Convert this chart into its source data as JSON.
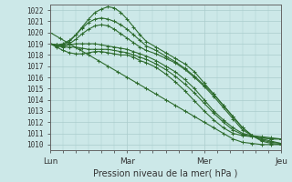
{
  "xlabel": "Pression niveau de la mer( hPa )",
  "bg_color": "#cce8e8",
  "grid_color": "#aacccc",
  "line_color": "#2d6b2d",
  "ylim": [
    1009.5,
    1022.5
  ],
  "yticks": [
    1010,
    1011,
    1012,
    1013,
    1014,
    1015,
    1016,
    1017,
    1018,
    1019,
    1020,
    1021,
    1022
  ],
  "xtick_labels": [
    "Lun",
    "Mar",
    "Mer",
    "Jeu"
  ],
  "xtick_positions": [
    0,
    48,
    96,
    144
  ],
  "lines": [
    {
      "points": [
        [
          0,
          1020.0
        ],
        [
          6,
          1019.5
        ],
        [
          12,
          1019.0
        ],
        [
          18,
          1018.5
        ],
        [
          24,
          1018.0
        ],
        [
          30,
          1017.5
        ],
        [
          36,
          1017.0
        ],
        [
          42,
          1016.5
        ],
        [
          48,
          1016.0
        ],
        [
          54,
          1015.5
        ],
        [
          60,
          1015.0
        ],
        [
          66,
          1014.5
        ],
        [
          72,
          1014.0
        ],
        [
          78,
          1013.5
        ],
        [
          84,
          1013.0
        ],
        [
          90,
          1012.5
        ],
        [
          96,
          1012.0
        ],
        [
          102,
          1011.5
        ],
        [
          108,
          1011.0
        ],
        [
          114,
          1010.5
        ],
        [
          120,
          1010.2
        ],
        [
          126,
          1010.1
        ],
        [
          132,
          1010.0
        ],
        [
          138,
          1010.0
        ],
        [
          144,
          1010.0
        ]
      ]
    },
    {
      "points": [
        [
          0,
          1019.0
        ],
        [
          4,
          1018.8
        ],
        [
          8,
          1018.9
        ],
        [
          12,
          1019.2
        ],
        [
          16,
          1019.8
        ],
        [
          20,
          1020.5
        ],
        [
          24,
          1021.2
        ],
        [
          28,
          1021.8
        ],
        [
          32,
          1022.1
        ],
        [
          36,
          1022.3
        ],
        [
          40,
          1022.2
        ],
        [
          44,
          1021.8
        ],
        [
          48,
          1021.2
        ],
        [
          52,
          1020.5
        ],
        [
          56,
          1019.8
        ],
        [
          60,
          1019.2
        ],
        [
          66,
          1018.7
        ],
        [
          72,
          1018.2
        ],
        [
          78,
          1017.7
        ],
        [
          84,
          1017.2
        ],
        [
          90,
          1016.5
        ],
        [
          96,
          1015.5
        ],
        [
          102,
          1014.5
        ],
        [
          108,
          1013.5
        ],
        [
          114,
          1012.5
        ],
        [
          120,
          1011.5
        ],
        [
          126,
          1010.8
        ],
        [
          132,
          1010.3
        ],
        [
          138,
          1010.1
        ],
        [
          144,
          1010.0
        ]
      ]
    },
    {
      "points": [
        [
          0,
          1019.0
        ],
        [
          4,
          1018.9
        ],
        [
          8,
          1019.0
        ],
        [
          12,
          1019.3
        ],
        [
          16,
          1019.8
        ],
        [
          20,
          1020.4
        ],
        [
          24,
          1020.9
        ],
        [
          28,
          1021.2
        ],
        [
          32,
          1021.3
        ],
        [
          36,
          1021.2
        ],
        [
          40,
          1021.0
        ],
        [
          44,
          1020.7
        ],
        [
          48,
          1020.3
        ],
        [
          52,
          1019.8
        ],
        [
          56,
          1019.3
        ],
        [
          60,
          1018.8
        ],
        [
          66,
          1018.4
        ],
        [
          72,
          1017.9
        ],
        [
          78,
          1017.4
        ],
        [
          84,
          1016.8
        ],
        [
          90,
          1016.1
        ],
        [
          96,
          1015.3
        ],
        [
          102,
          1014.5
        ],
        [
          108,
          1013.5
        ],
        [
          114,
          1012.5
        ],
        [
          120,
          1011.5
        ],
        [
          126,
          1010.8
        ],
        [
          132,
          1010.4
        ],
        [
          138,
          1010.2
        ],
        [
          144,
          1010.1
        ]
      ]
    },
    {
      "points": [
        [
          0,
          1019.0
        ],
        [
          4,
          1018.9
        ],
        [
          8,
          1018.8
        ],
        [
          12,
          1019.0
        ],
        [
          16,
          1019.4
        ],
        [
          20,
          1019.9
        ],
        [
          24,
          1020.3
        ],
        [
          28,
          1020.6
        ],
        [
          32,
          1020.7
        ],
        [
          36,
          1020.6
        ],
        [
          40,
          1020.3
        ],
        [
          44,
          1019.9
        ],
        [
          48,
          1019.5
        ],
        [
          52,
          1019.1
        ],
        [
          56,
          1018.7
        ],
        [
          60,
          1018.4
        ],
        [
          66,
          1018.1
        ],
        [
          72,
          1017.7
        ],
        [
          78,
          1017.3
        ],
        [
          84,
          1016.7
        ],
        [
          90,
          1016.0
        ],
        [
          96,
          1015.2
        ],
        [
          102,
          1014.3
        ],
        [
          108,
          1013.3
        ],
        [
          114,
          1012.3
        ],
        [
          120,
          1011.3
        ],
        [
          126,
          1010.8
        ],
        [
          132,
          1010.5
        ],
        [
          138,
          1010.3
        ],
        [
          144,
          1010.1
        ]
      ]
    },
    {
      "points": [
        [
          0,
          1019.0
        ],
        [
          4,
          1018.9
        ],
        [
          8,
          1018.8
        ],
        [
          12,
          1018.9
        ],
        [
          16,
          1019.0
        ],
        [
          20,
          1019.0
        ],
        [
          24,
          1019.0
        ],
        [
          28,
          1019.0
        ],
        [
          32,
          1018.9
        ],
        [
          36,
          1018.8
        ],
        [
          40,
          1018.7
        ],
        [
          44,
          1018.6
        ],
        [
          48,
          1018.5
        ],
        [
          52,
          1018.3
        ],
        [
          56,
          1018.1
        ],
        [
          60,
          1017.9
        ],
        [
          66,
          1017.5
        ],
        [
          72,
          1017.0
        ],
        [
          78,
          1016.5
        ],
        [
          84,
          1015.8
        ],
        [
          90,
          1015.0
        ],
        [
          96,
          1014.0
        ],
        [
          102,
          1013.0
        ],
        [
          108,
          1012.2
        ],
        [
          114,
          1011.5
        ],
        [
          120,
          1011.0
        ],
        [
          126,
          1010.8
        ],
        [
          132,
          1010.7
        ],
        [
          138,
          1010.6
        ],
        [
          144,
          1010.5
        ]
      ]
    },
    {
      "points": [
        [
          0,
          1019.0
        ],
        [
          4,
          1018.8
        ],
        [
          8,
          1018.7
        ],
        [
          12,
          1018.7
        ],
        [
          16,
          1018.7
        ],
        [
          20,
          1018.6
        ],
        [
          24,
          1018.5
        ],
        [
          28,
          1018.5
        ],
        [
          32,
          1018.5
        ],
        [
          36,
          1018.5
        ],
        [
          40,
          1018.4
        ],
        [
          44,
          1018.3
        ],
        [
          48,
          1018.2
        ],
        [
          52,
          1018.0
        ],
        [
          56,
          1017.8
        ],
        [
          60,
          1017.6
        ],
        [
          66,
          1017.2
        ],
        [
          72,
          1016.7
        ],
        [
          78,
          1016.1
        ],
        [
          84,
          1015.4
        ],
        [
          90,
          1014.6
        ],
        [
          96,
          1013.7
        ],
        [
          102,
          1012.8
        ],
        [
          108,
          1012.0
        ],
        [
          114,
          1011.3
        ],
        [
          120,
          1010.9
        ],
        [
          126,
          1010.7
        ],
        [
          132,
          1010.6
        ],
        [
          138,
          1010.5
        ],
        [
          144,
          1010.5
        ]
      ]
    },
    {
      "points": [
        [
          0,
          1019.0
        ],
        [
          4,
          1018.7
        ],
        [
          8,
          1018.4
        ],
        [
          12,
          1018.2
        ],
        [
          16,
          1018.1
        ],
        [
          20,
          1018.1
        ],
        [
          24,
          1018.2
        ],
        [
          28,
          1018.3
        ],
        [
          32,
          1018.3
        ],
        [
          36,
          1018.2
        ],
        [
          40,
          1018.1
        ],
        [
          44,
          1018.0
        ],
        [
          48,
          1018.0
        ],
        [
          52,
          1017.8
        ],
        [
          56,
          1017.5
        ],
        [
          60,
          1017.3
        ],
        [
          66,
          1016.9
        ],
        [
          72,
          1016.3
        ],
        [
          78,
          1015.6
        ],
        [
          84,
          1014.8
        ],
        [
          90,
          1013.9
        ],
        [
          96,
          1013.0
        ],
        [
          102,
          1012.2
        ],
        [
          108,
          1011.5
        ],
        [
          114,
          1011.0
        ],
        [
          120,
          1010.8
        ],
        [
          126,
          1010.7
        ],
        [
          132,
          1010.6
        ],
        [
          138,
          1010.5
        ],
        [
          144,
          1010.5
        ]
      ]
    }
  ]
}
